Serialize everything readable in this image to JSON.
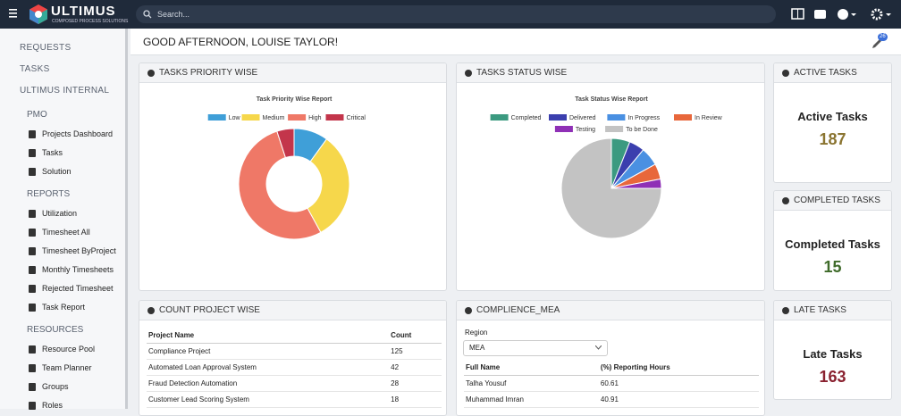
{
  "header": {
    "logo": "ULTIMUS",
    "logo_tagline": "COMPOSED PROCESS SOLUTIONS",
    "search_placeholder": "Search..."
  },
  "sidebar": {
    "top": [
      "REQUESTS",
      "TASKS"
    ],
    "section": "ULTIMUS INTERNAL",
    "groups": [
      {
        "label": "PMO",
        "items": [
          "Projects Dashboard",
          "Tasks",
          "Solution"
        ]
      },
      {
        "label": "REPORTS",
        "items": [
          "Utilization",
          "Timesheet All",
          "Timesheet ByProject",
          "Monthly Timesheets",
          "Rejected Timesheet",
          "Task Report"
        ]
      },
      {
        "label": "RESOURCES",
        "items": [
          "Resource Pool",
          "Team Planner",
          "Groups",
          "Roles"
        ]
      }
    ]
  },
  "greeting": "GOOD AFTERNOON, LOUISE TAYLOR!",
  "notification_badge": 26,
  "panels": {
    "priority": "TASKS PRIORITY WISE",
    "status": "TASKS STATUS WISE",
    "count": "COUNT PROJECT WISE",
    "compliance": "COMPLIENCE_MEA"
  },
  "chart_data": [
    {
      "type": "donut",
      "title": "Task Priority Wise Report",
      "series": [
        {
          "name": "Low",
          "color": "#3f9fd8",
          "value": 10
        },
        {
          "name": "Medium",
          "color": "#f6d74b",
          "value": 32
        },
        {
          "name": "High",
          "color": "#ef7867",
          "value": 53
        },
        {
          "name": "Critical",
          "color": "#c3354b",
          "value": 5
        }
      ]
    },
    {
      "type": "pie",
      "title": "Task Status Wise Report",
      "series": [
        {
          "name": "Completed",
          "color": "#3b9a80",
          "value": 6
        },
        {
          "name": "Delivered",
          "color": "#3b3fae",
          "value": 5
        },
        {
          "name": "In Progress",
          "color": "#4a90e2",
          "value": 6
        },
        {
          "name": "In Review",
          "color": "#e8673b",
          "value": 5
        },
        {
          "name": "Testing",
          "color": "#8f30b6",
          "value": 3
        },
        {
          "name": "To be Done",
          "color": "#c3c3c3",
          "value": 75
        }
      ]
    }
  ],
  "cards": [
    {
      "header": "ACTIVE TASKS",
      "title": "Active Tasks",
      "value": 187,
      "color": "#8a7430"
    },
    {
      "header": "COMPLETED TASKS",
      "title": "Completed Tasks",
      "value": 15,
      "color": "#3f6b2a"
    },
    {
      "header": "LATE TASKS",
      "title": "Late Tasks",
      "value": 163,
      "color": "#8a2230"
    }
  ],
  "count_table": {
    "columns": [
      "Project Name",
      "Count"
    ],
    "rows": [
      [
        "Compliance Project",
        125
      ],
      [
        "Automated Loan Approval System",
        42
      ],
      [
        "Fraud Detection Automation",
        28
      ],
      [
        "Customer Lead Scoring System",
        18
      ]
    ]
  },
  "compliance": {
    "filter_label": "Region",
    "filter_value": "MEA",
    "columns": [
      "Full Name",
      "(%) Reporting Hours"
    ],
    "rows": [
      [
        "Talha Yousuf",
        60.61
      ],
      [
        "Muhammad Imran",
        40.91
      ]
    ]
  }
}
